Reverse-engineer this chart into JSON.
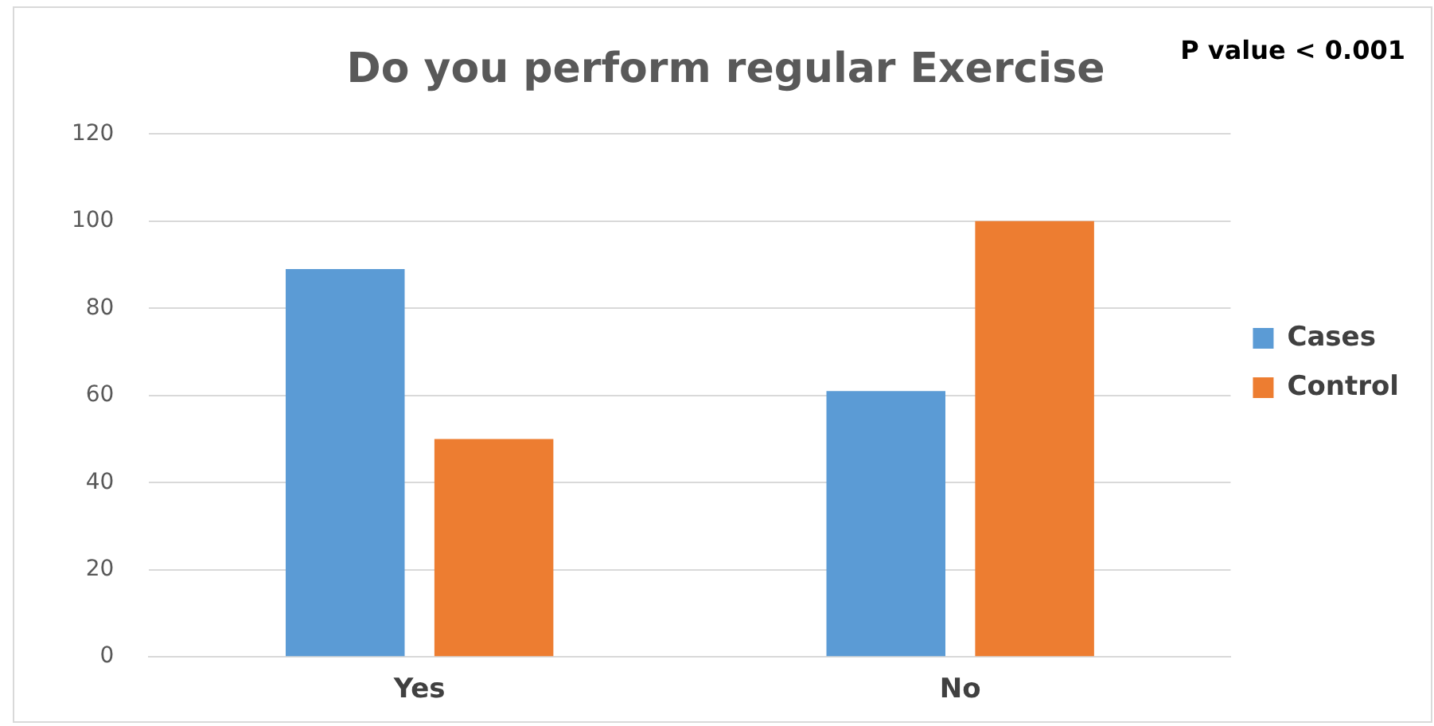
{
  "chart_data": {
    "type": "bar",
    "title": "Do you perform regular Exercise",
    "annotations": [
      "P value < 0.001"
    ],
    "categories": [
      "Yes",
      "No"
    ],
    "series": [
      {
        "name": "Cases",
        "color": "#5b9bd5",
        "values": [
          89,
          61
        ]
      },
      {
        "name": "Control",
        "color": "#ed7d31",
        "values": [
          50,
          100
        ]
      }
    ],
    "ylim": [
      0,
      120
    ],
    "yticks": [
      0,
      20,
      40,
      60,
      80,
      100,
      120
    ],
    "grid": "y",
    "legend": "right"
  }
}
